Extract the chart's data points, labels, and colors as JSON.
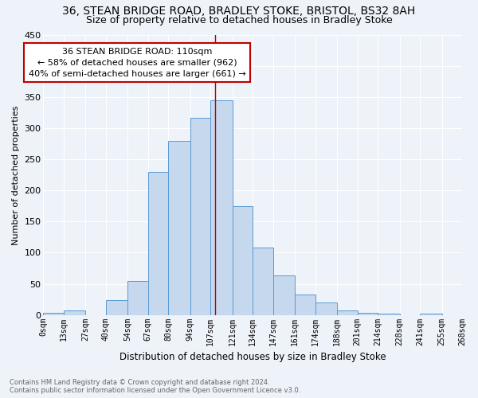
{
  "title1": "36, STEAN BRIDGE ROAD, BRADLEY STOKE, BRISTOL, BS32 8AH",
  "title2": "Size of property relative to detached houses in Bradley Stoke",
  "xlabel": "Distribution of detached houses by size in Bradley Stoke",
  "ylabel": "Number of detached properties",
  "bin_labels": [
    "0sqm",
    "13sqm",
    "27sqm",
    "40sqm",
    "54sqm",
    "67sqm",
    "80sqm",
    "94sqm",
    "107sqm",
    "121sqm",
    "134sqm",
    "147sqm",
    "161sqm",
    "174sqm",
    "188sqm",
    "201sqm",
    "214sqm",
    "228sqm",
    "241sqm",
    "255sqm",
    "268sqm"
  ],
  "bin_edges": [
    0,
    13,
    27,
    40,
    54,
    67,
    80,
    94,
    107,
    121,
    134,
    147,
    161,
    174,
    188,
    201,
    214,
    228,
    241,
    255,
    268
  ],
  "bar_values": [
    3,
    7,
    0,
    24,
    55,
    230,
    280,
    317,
    345,
    175,
    108,
    63,
    33,
    20,
    7,
    4,
    2,
    0,
    2,
    0
  ],
  "bar_color": "#c5d8ed",
  "bar_edge_color": "#5b9bd5",
  "vline_x": 110,
  "vline_color": "#c00000",
  "annotation_title": "36 STEAN BRIDGE ROAD: 110sqm",
  "annotation_line1": "← 58% of detached houses are smaller (962)",
  "annotation_line2": "40% of semi-detached houses are larger (661) →",
  "annotation_box_color": "#c00000",
  "footnote1": "Contains HM Land Registry data © Crown copyright and database right 2024.",
  "footnote2": "Contains public sector information licensed under the Open Government Licence v3.0.",
  "ylim": [
    0,
    450
  ],
  "background_color": "#eef2f9",
  "grid_color": "#ffffff",
  "title_fontsize": 10,
  "subtitle_fontsize": 9
}
